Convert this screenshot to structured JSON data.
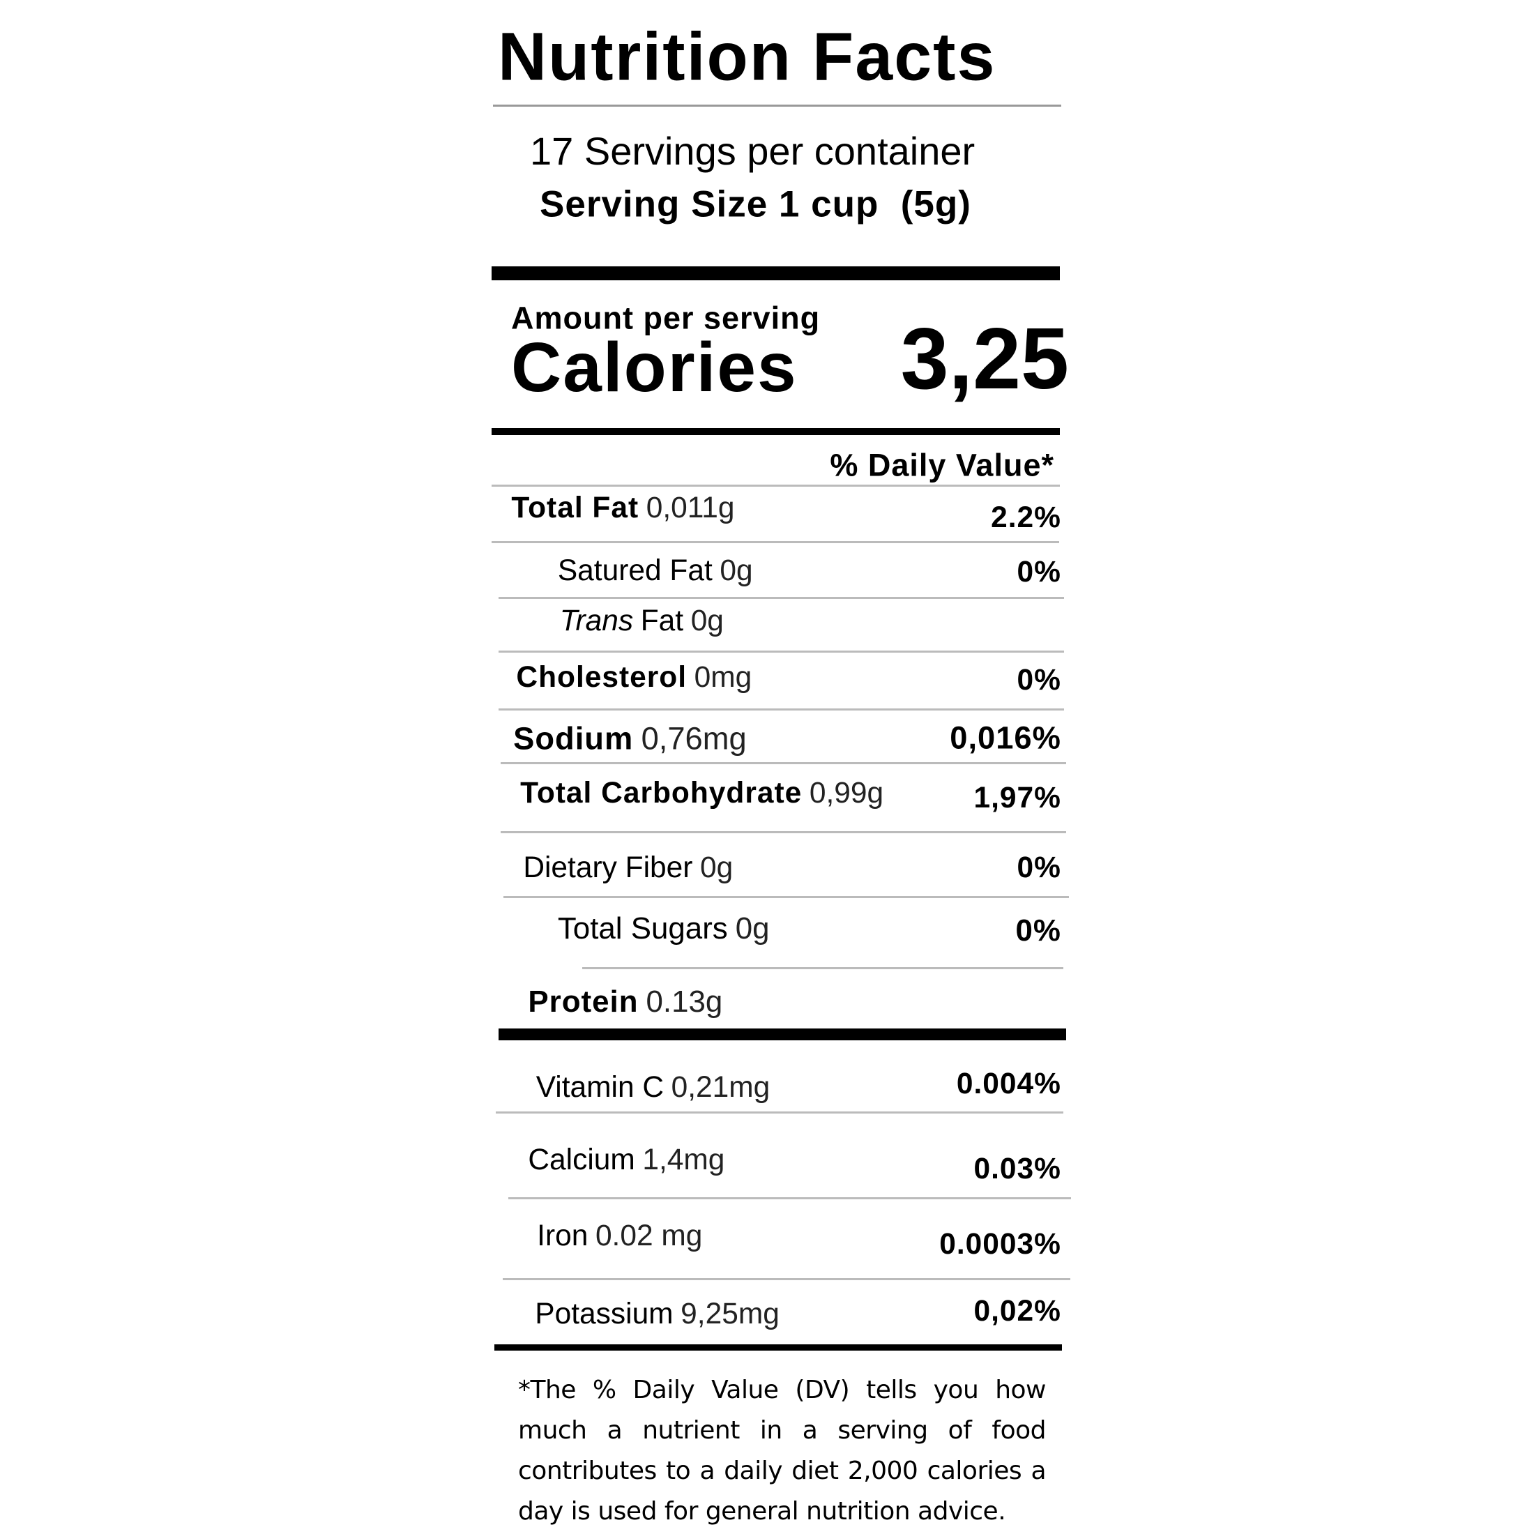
{
  "title": "Nutrition Facts",
  "servings": "17 Servings per container",
  "serving_size": "Serving Size 1 cup  (5g)",
  "amount_per_serving": "Amount per serving",
  "calories_label": "Calories",
  "calories_value": "3,25",
  "daily_value_header": "% Daily Value*",
  "rows": [
    {
      "name": "Total Fat",
      "amount": "0,011g",
      "dv": "2.2%"
    },
    {
      "name": "Satured Fat",
      "amount": "0g",
      "dv": "0%"
    },
    {
      "name_italic": "Trans",
      "name": "Fat",
      "amount": "0g"
    },
    {
      "name": "Cholesterol",
      "amount": "0mg",
      "dv": "0%"
    },
    {
      "name": "Sodium",
      "amount": "0,76mg",
      "dv": "0,016%"
    },
    {
      "name": "Total Carbohydrate",
      "amount": "0,99g",
      "dv": "1,97%"
    },
    {
      "name": "Dietary Fiber",
      "amount": "0g",
      "dv": "0%"
    },
    {
      "name": "Total Sugars",
      "amount": "0g",
      "dv": "0%"
    },
    {
      "name": "Protein",
      "amount": "0.13g"
    },
    {
      "name": "Vitamin C",
      "amount": "0,21mg",
      "dv": "0.004%"
    },
    {
      "name": "Calcium",
      "amount": "1,4mg",
      "dv": "0.03%"
    },
    {
      "name": "Iron",
      "amount": "0.02 mg",
      "dv": "0.0003%"
    },
    {
      "name": "Potassium",
      "amount": "9,25mg",
      "dv": "0,02%"
    }
  ],
  "footnote": "*The % Daily Value (DV) tells you how much a nutrient in a serving of food contributes to a daily diet 2,000 calories a day is used for general nutrition advice."
}
